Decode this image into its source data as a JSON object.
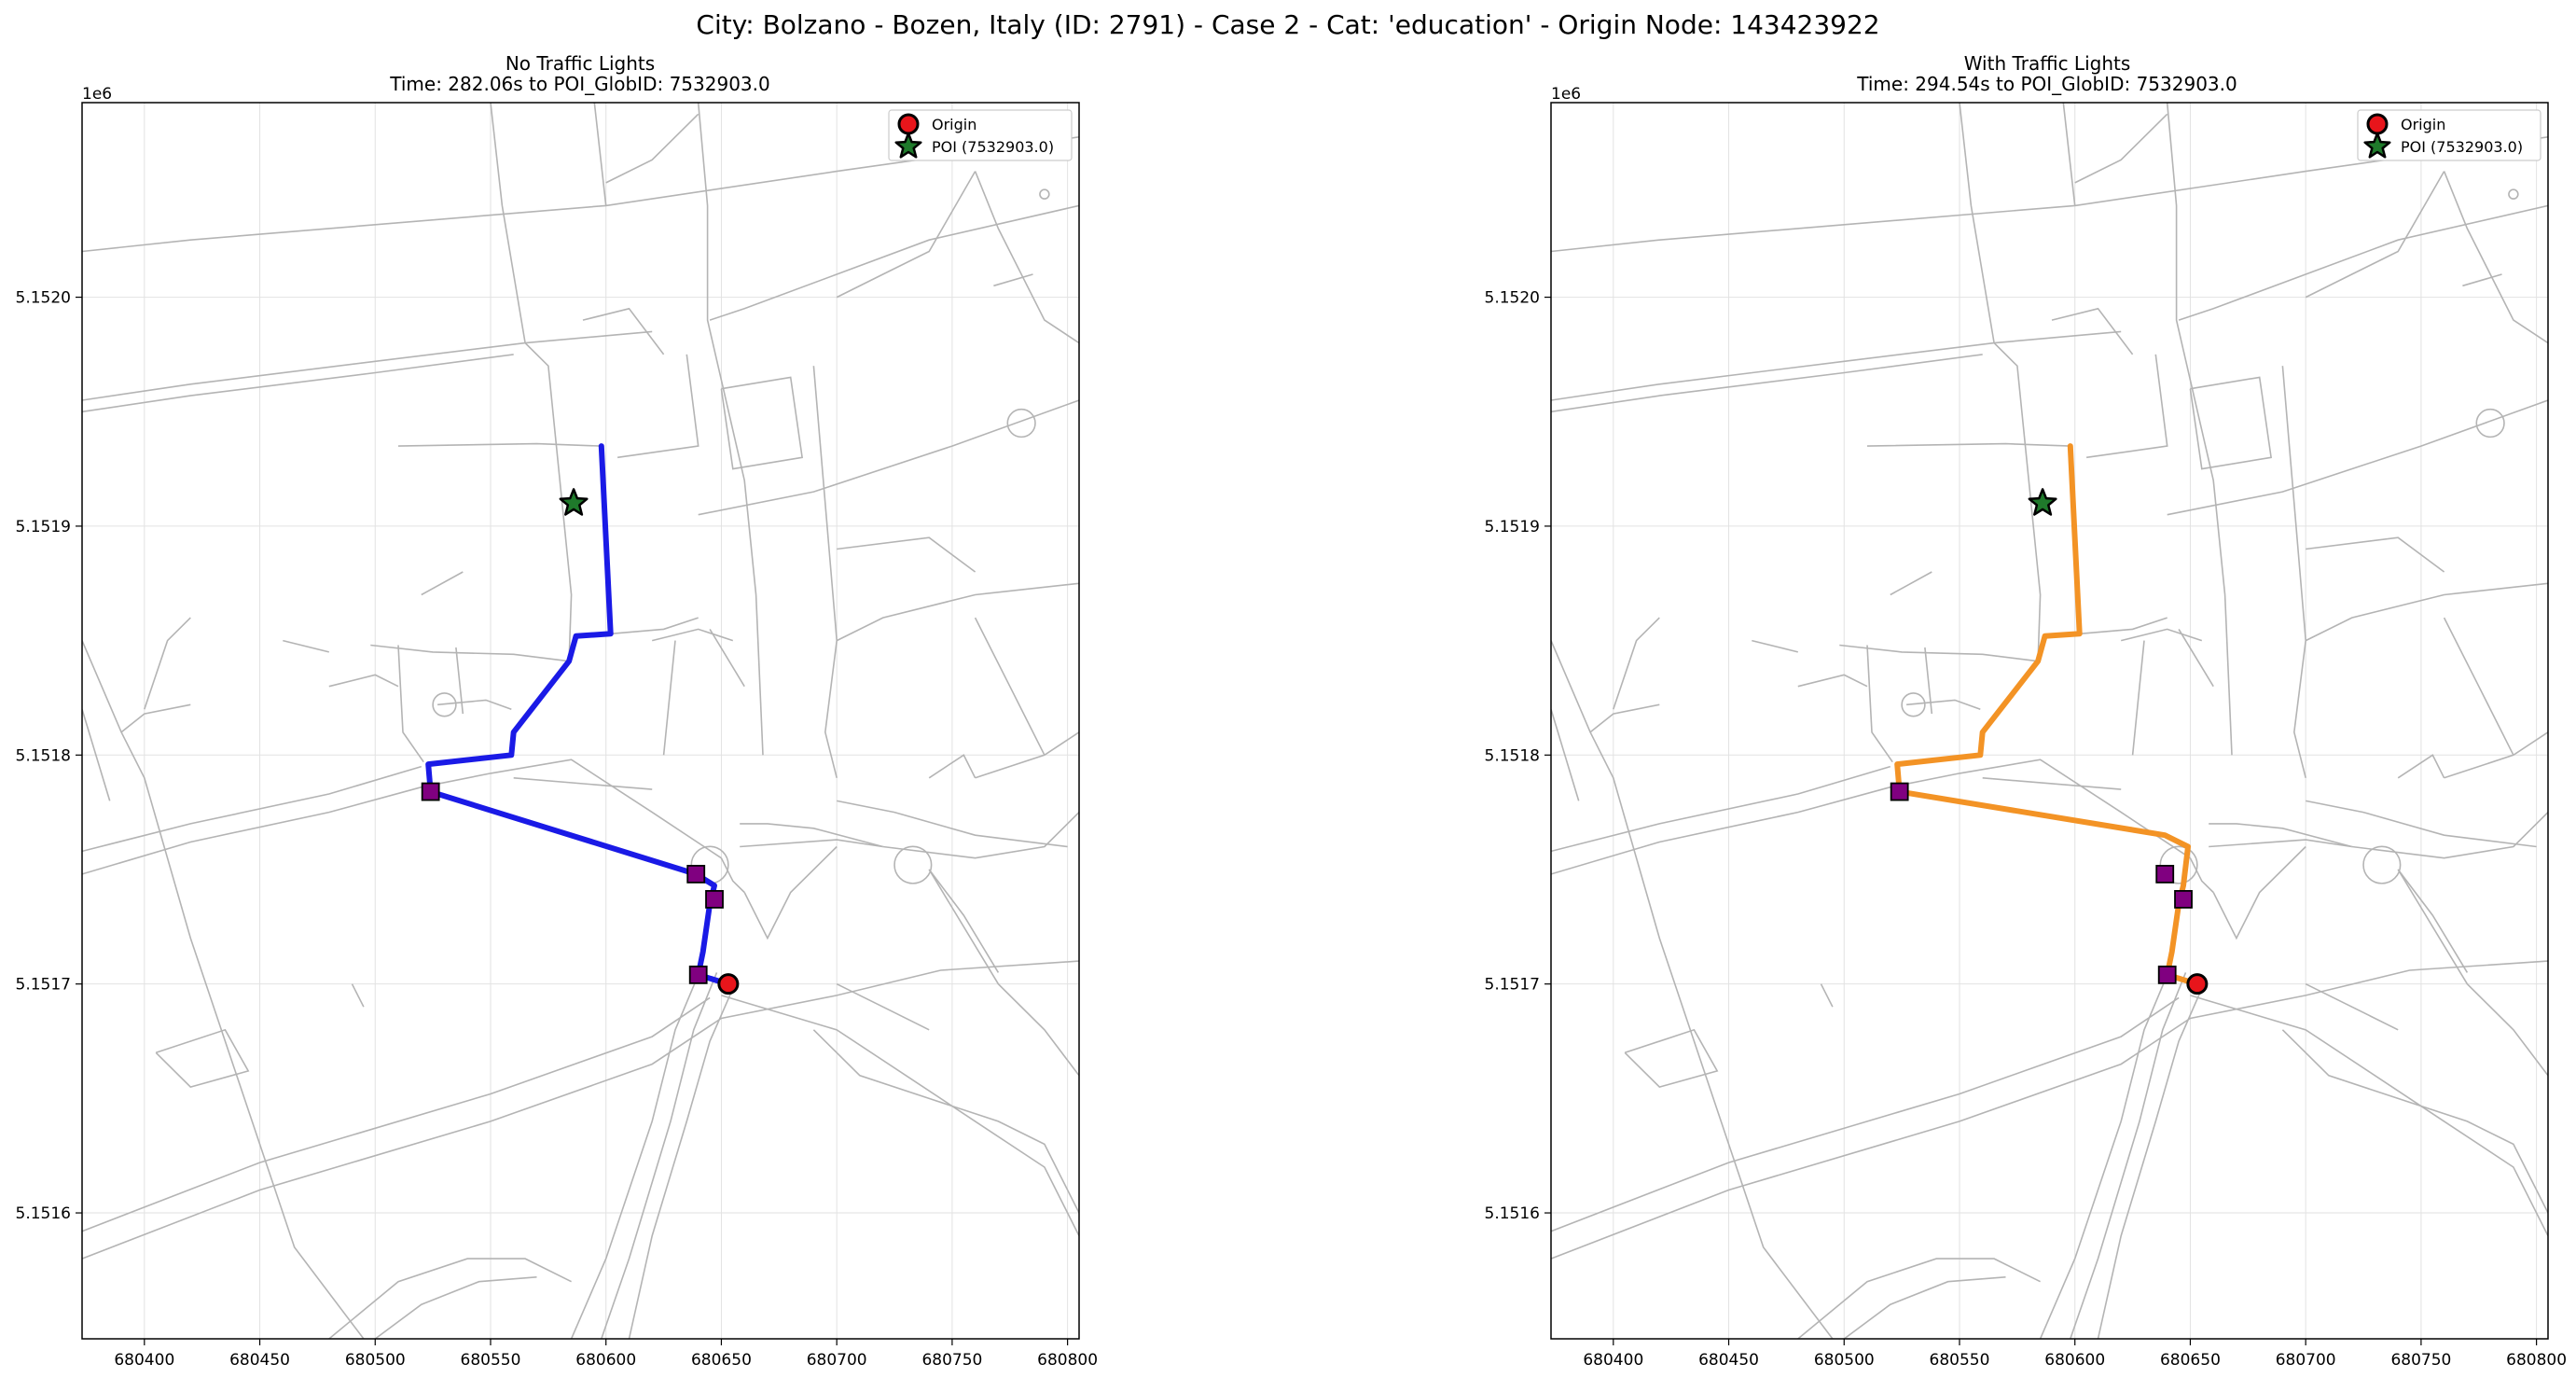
{
  "figure": {
    "suptitle": "City: Bolzano - Bozen, Italy (ID: 2791) - Case 2 - Cat: 'education' - Origin Node: 143423922"
  },
  "axes": {
    "x_ticks": [
      "680400",
      "680450",
      "680500",
      "680550",
      "680600",
      "680650",
      "680700",
      "680750",
      "680800"
    ],
    "y_ticks": [
      "5.1516",
      "5.1517",
      "5.1518",
      "5.1519",
      "5.1520"
    ],
    "y_offset": "1e6",
    "xlim": [
      680373,
      680805
    ],
    "ylim": [
      5151545,
      5152085
    ]
  },
  "panels": [
    {
      "title_line1": "No Traffic Lights",
      "title_line2": "Time: 282.06s to POI_GlobID: 7532903.0",
      "route_color": "#1a1ae6"
    },
    {
      "title_line1": "With Traffic Lights",
      "title_line2": "Time: 294.54s to POI_GlobID: 7532903.0",
      "route_color": "#f39325"
    }
  ],
  "legend": {
    "origin_label": "Origin",
    "poi_label": "POI (7532903.0)"
  },
  "colors": {
    "street": "#b4b4b4",
    "grid": "#e2e2e2",
    "origin": "#e8151b",
    "poi": "#1f7a2b",
    "signal": "#800080"
  },
  "markers": {
    "origin": {
      "x": 680653,
      "y": 5151700
    },
    "poi": {
      "x": 680586,
      "y": 5151910
    },
    "signals": [
      {
        "x": 680524,
        "y": 5151784
      },
      {
        "x": 680639,
        "y": 5151748
      },
      {
        "x": 680647,
        "y": 5151737
      },
      {
        "x": 680640,
        "y": 5151704
      }
    ]
  },
  "routes": {
    "no_lights": [
      [
        680653,
        5151700
      ],
      [
        680640,
        5151704
      ],
      [
        680642,
        5151714
      ],
      [
        680645,
        5151735
      ],
      [
        680647,
        5151743
      ],
      [
        680639,
        5151748
      ],
      [
        680524,
        5151784
      ],
      [
        680523,
        5151796
      ],
      [
        680559,
        5151800
      ],
      [
        680560,
        5151810
      ],
      [
        680584,
        5151841
      ],
      [
        680587,
        5151852
      ],
      [
        680602,
        5151853
      ],
      [
        680598,
        5151935
      ]
    ],
    "with_lights": [
      [
        680653,
        5151700
      ],
      [
        680640,
        5151704
      ],
      [
        680642,
        5151714
      ],
      [
        680645,
        5151735
      ],
      [
        680647,
        5151743
      ],
      [
        680649,
        5151760
      ],
      [
        680639,
        5151765
      ],
      [
        680524,
        5151784
      ],
      [
        680523,
        5151796
      ],
      [
        680559,
        5151800
      ],
      [
        680560,
        5151810
      ],
      [
        680584,
        5151841
      ],
      [
        680587,
        5151852
      ],
      [
        680602,
        5151853
      ],
      [
        680598,
        5151935
      ]
    ]
  },
  "streets": [
    [
      [
        680373,
        5152020
      ],
      [
        680420,
        5152025
      ],
      [
        680600,
        5152040
      ],
      [
        680700,
        5152055
      ],
      [
        680805,
        5152070
      ]
    ],
    [
      [
        680373,
        5151955
      ],
      [
        680420,
        5151962
      ],
      [
        680500,
        5151972
      ],
      [
        680565,
        5151980
      ],
      [
        680620,
        5151985
      ]
    ],
    [
      [
        680373,
        5151950
      ],
      [
        680420,
        5151957
      ],
      [
        680500,
        5151967
      ],
      [
        680560,
        5151975
      ]
    ],
    [
      [
        680510,
        5151935
      ],
      [
        680570,
        5151936
      ],
      [
        680598,
        5151935
      ]
    ],
    [
      [
        680498,
        5151848
      ],
      [
        680525,
        5151845
      ],
      [
        680560,
        5151844
      ],
      [
        680584,
        5151841
      ]
    ],
    [
      [
        680510,
        5151848
      ],
      [
        680512,
        5151810
      ],
      [
        680521,
        5151797
      ]
    ],
    [
      [
        680535,
        5151847
      ],
      [
        680538,
        5151818
      ]
    ],
    [
      [
        680527,
        5151822
      ],
      [
        680548,
        5151824
      ],
      [
        680559,
        5151820
      ]
    ],
    [
      [
        680373,
        5151748
      ],
      [
        680420,
        5151762
      ],
      [
        680480,
        5151775
      ],
      [
        680520,
        5151786
      ],
      [
        680550,
        5151792
      ],
      [
        680585,
        5151798
      ],
      [
        680620,
        5151775
      ],
      [
        680650,
        5151755
      ]
    ],
    [
      [
        680373,
        5151758
      ],
      [
        680420,
        5151770
      ],
      [
        680480,
        5151783
      ],
      [
        680520,
        5151795
      ]
    ],
    [
      [
        680373,
        5151580
      ],
      [
        680450,
        5151610
      ],
      [
        680550,
        5151640
      ],
      [
        680620,
        5151665
      ],
      [
        680650,
        5151685
      ],
      [
        680700,
        5151695
      ],
      [
        680745,
        5151706
      ],
      [
        680805,
        5151710
      ]
    ],
    [
      [
        680373,
        5151592
      ],
      [
        680450,
        5151622
      ],
      [
        680550,
        5151652
      ],
      [
        680620,
        5151677
      ],
      [
        680645,
        5151694
      ]
    ],
    [
      [
        680373,
        5151850
      ],
      [
        680390,
        5151810
      ],
      [
        680400,
        5151790
      ],
      [
        680420,
        5151720
      ],
      [
        680440,
        5151660
      ],
      [
        680465,
        5151585
      ],
      [
        680495,
        5151545
      ]
    ],
    [
      [
        680390,
        5151810
      ],
      [
        680400,
        5151818
      ],
      [
        680420,
        5151822
      ]
    ],
    [
      [
        680373,
        5151820
      ],
      [
        680385,
        5151780
      ]
    ],
    [
      [
        680405,
        5151670
      ],
      [
        680435,
        5151680
      ],
      [
        680445,
        5151662
      ],
      [
        680420,
        5151655
      ],
      [
        680405,
        5151670
      ]
    ],
    [
      [
        680550,
        5152085
      ],
      [
        680555,
        5152040
      ],
      [
        680565,
        5151980
      ],
      [
        680575,
        5151970
      ],
      [
        680585,
        5151870
      ],
      [
        680584,
        5151841
      ]
    ],
    [
      [
        680595,
        5152085
      ],
      [
        680600,
        5152040
      ]
    ],
    [
      [
        680640,
        5152085
      ],
      [
        680644,
        5152040
      ],
      [
        680644,
        5151990
      ],
      [
        680660,
        5151920
      ],
      [
        680665,
        5151870
      ],
      [
        680668,
        5151800
      ]
    ],
    [
      [
        680645,
        5151990
      ],
      [
        680660,
        5151995
      ],
      [
        680700,
        5152010
      ],
      [
        680740,
        5152025
      ],
      [
        680805,
        5152040
      ]
    ],
    [
      [
        680635,
        5151975
      ],
      [
        680640,
        5151935
      ],
      [
        680605,
        5151930
      ]
    ],
    [
      [
        680640,
        5151905
      ],
      [
        680690,
        5151915
      ],
      [
        680750,
        5151935
      ],
      [
        680805,
        5151955
      ]
    ],
    [
      [
        680650,
        5151960
      ],
      [
        680680,
        5151965
      ],
      [
        680685,
        5151930
      ],
      [
        680655,
        5151925
      ],
      [
        680650,
        5151960
      ]
    ],
    [
      [
        680690,
        5151970
      ],
      [
        680700,
        5151850
      ],
      [
        680695,
        5151810
      ],
      [
        680700,
        5151790
      ]
    ],
    [
      [
        680700,
        5151850
      ],
      [
        680720,
        5151860
      ],
      [
        680760,
        5151870
      ],
      [
        680805,
        5151875
      ]
    ],
    [
      [
        680700,
        5152000
      ],
      [
        680720,
        5152010
      ],
      [
        680740,
        5152020
      ],
      [
        680760,
        5152055
      ]
    ],
    [
      [
        680760,
        5152055
      ],
      [
        680770,
        5152030
      ],
      [
        680790,
        5151990
      ],
      [
        680805,
        5151980
      ]
    ],
    [
      [
        680768,
        5152005
      ],
      [
        680785,
        5152010
      ]
    ],
    [
      [
        680700,
        5151890
      ],
      [
        680740,
        5151895
      ],
      [
        680760,
        5151880
      ]
    ],
    [
      [
        680600,
        5152050
      ],
      [
        680620,
        5152060
      ],
      [
        680640,
        5152080
      ]
    ],
    [
      [
        680590,
        5151990
      ],
      [
        680610,
        5151995
      ],
      [
        680625,
        5151975
      ]
    ],
    [
      [
        680620,
        5151850
      ],
      [
        680640,
        5151855
      ],
      [
        680655,
        5151850
      ]
    ],
    [
      [
        680625,
        5151800
      ],
      [
        680630,
        5151850
      ]
    ],
    [
      [
        680658,
        5151770
      ],
      [
        680670,
        5151770
      ],
      [
        680690,
        5151768
      ],
      [
        680720,
        5151760
      ]
    ],
    [
      [
        680658,
        5151760
      ],
      [
        680700,
        5151763
      ],
      [
        680720,
        5151760
      ]
    ],
    [
      [
        680700,
        5151780
      ],
      [
        680725,
        5151775
      ],
      [
        680760,
        5151765
      ],
      [
        680800,
        5151760
      ]
    ],
    [
      [
        680720,
        5151760
      ],
      [
        680760,
        5151755
      ],
      [
        680790,
        5151760
      ],
      [
        680805,
        5151775
      ]
    ],
    [
      [
        680650,
        5151755
      ],
      [
        680655,
        5151745
      ],
      [
        680660,
        5151740
      ]
    ],
    [
      [
        680660,
        5151740
      ],
      [
        680670,
        5151720
      ],
      [
        680680,
        5151740
      ],
      [
        680700,
        5151760
      ]
    ],
    [
      [
        680740,
        5151750
      ],
      [
        680770,
        5151700
      ],
      [
        680790,
        5151680
      ],
      [
        680805,
        5151660
      ]
    ],
    [
      [
        680740,
        5151750
      ],
      [
        680755,
        5151730
      ],
      [
        680770,
        5151705
      ]
    ],
    [
      [
        680690,
        5151680
      ],
      [
        680710,
        5151660
      ],
      [
        680740,
        5151650
      ],
      [
        680770,
        5151640
      ],
      [
        680790,
        5151630
      ],
      [
        680805,
        5151600
      ]
    ],
    [
      [
        680650,
        5151695
      ],
      [
        680700,
        5151680
      ],
      [
        680730,
        5151660
      ],
      [
        680760,
        5151640
      ],
      [
        680790,
        5151620
      ],
      [
        680805,
        5151590
      ]
    ],
    [
      [
        680640,
        5151704
      ],
      [
        680630,
        5151680
      ],
      [
        680620,
        5151640
      ],
      [
        680600,
        5151580
      ],
      [
        680585,
        5151545
      ]
    ],
    [
      [
        680648,
        5151705
      ],
      [
        680638,
        5151680
      ],
      [
        680628,
        5151640
      ],
      [
        680610,
        5151580
      ],
      [
        680598,
        5151545
      ]
    ],
    [
      [
        680655,
        5151698
      ],
      [
        680645,
        5151675
      ],
      [
        680635,
        5151640
      ],
      [
        680620,
        5151590
      ],
      [
        680610,
        5151545
      ]
    ],
    [
      [
        680480,
        5151545
      ],
      [
        680510,
        5151570
      ],
      [
        680540,
        5151580
      ],
      [
        680565,
        5151580
      ],
      [
        680585,
        5151570
      ]
    ],
    [
      [
        680500,
        5151545
      ],
      [
        680520,
        5151560
      ],
      [
        680545,
        5151570
      ],
      [
        680570,
        5151572
      ]
    ],
    [
      [
        680740,
        5151790
      ],
      [
        680755,
        5151800
      ],
      [
        680760,
        5151790
      ]
    ],
    [
      [
        680760,
        5151790
      ],
      [
        680790,
        5151800
      ],
      [
        680805,
        5151810
      ]
    ],
    [
      [
        680760,
        5151860
      ],
      [
        680775,
        5151830
      ],
      [
        680790,
        5151800
      ]
    ],
    [
      [
        680480,
        5151830
      ],
      [
        680500,
        5151835
      ],
      [
        680510,
        5151830
      ]
    ],
    [
      [
        680460,
        5151850
      ],
      [
        680480,
        5151845
      ]
    ],
    [
      [
        680520,
        5151870
      ],
      [
        680538,
        5151880
      ]
    ],
    [
      [
        680560,
        5151790
      ],
      [
        680620,
        5151785
      ]
    ],
    [
      [
        680602,
        5151853
      ],
      [
        680625,
        5151855
      ],
      [
        680640,
        5151860
      ]
    ],
    [
      [
        680645,
        5151855
      ],
      [
        680660,
        5151830
      ]
    ],
    [
      [
        680400,
        5151820
      ],
      [
        680410,
        5151850
      ],
      [
        680420,
        5151860
      ]
    ],
    [
      [
        680490,
        5151700
      ],
      [
        680495,
        5151690
      ]
    ],
    [
      [
        680700,
        5151700
      ],
      [
        680720,
        5151690
      ],
      [
        680740,
        5151680
      ]
    ]
  ],
  "circles": [
    {
      "x": 680530,
      "y": 5151822,
      "r": 5
    },
    {
      "x": 680645,
      "y": 5151752,
      "r": 8
    },
    {
      "x": 680733,
      "y": 5151752,
      "r": 8
    },
    {
      "x": 680780,
      "y": 5151945,
      "r": 6
    },
    {
      "x": 680790,
      "y": 5152045,
      "r": 2
    }
  ]
}
